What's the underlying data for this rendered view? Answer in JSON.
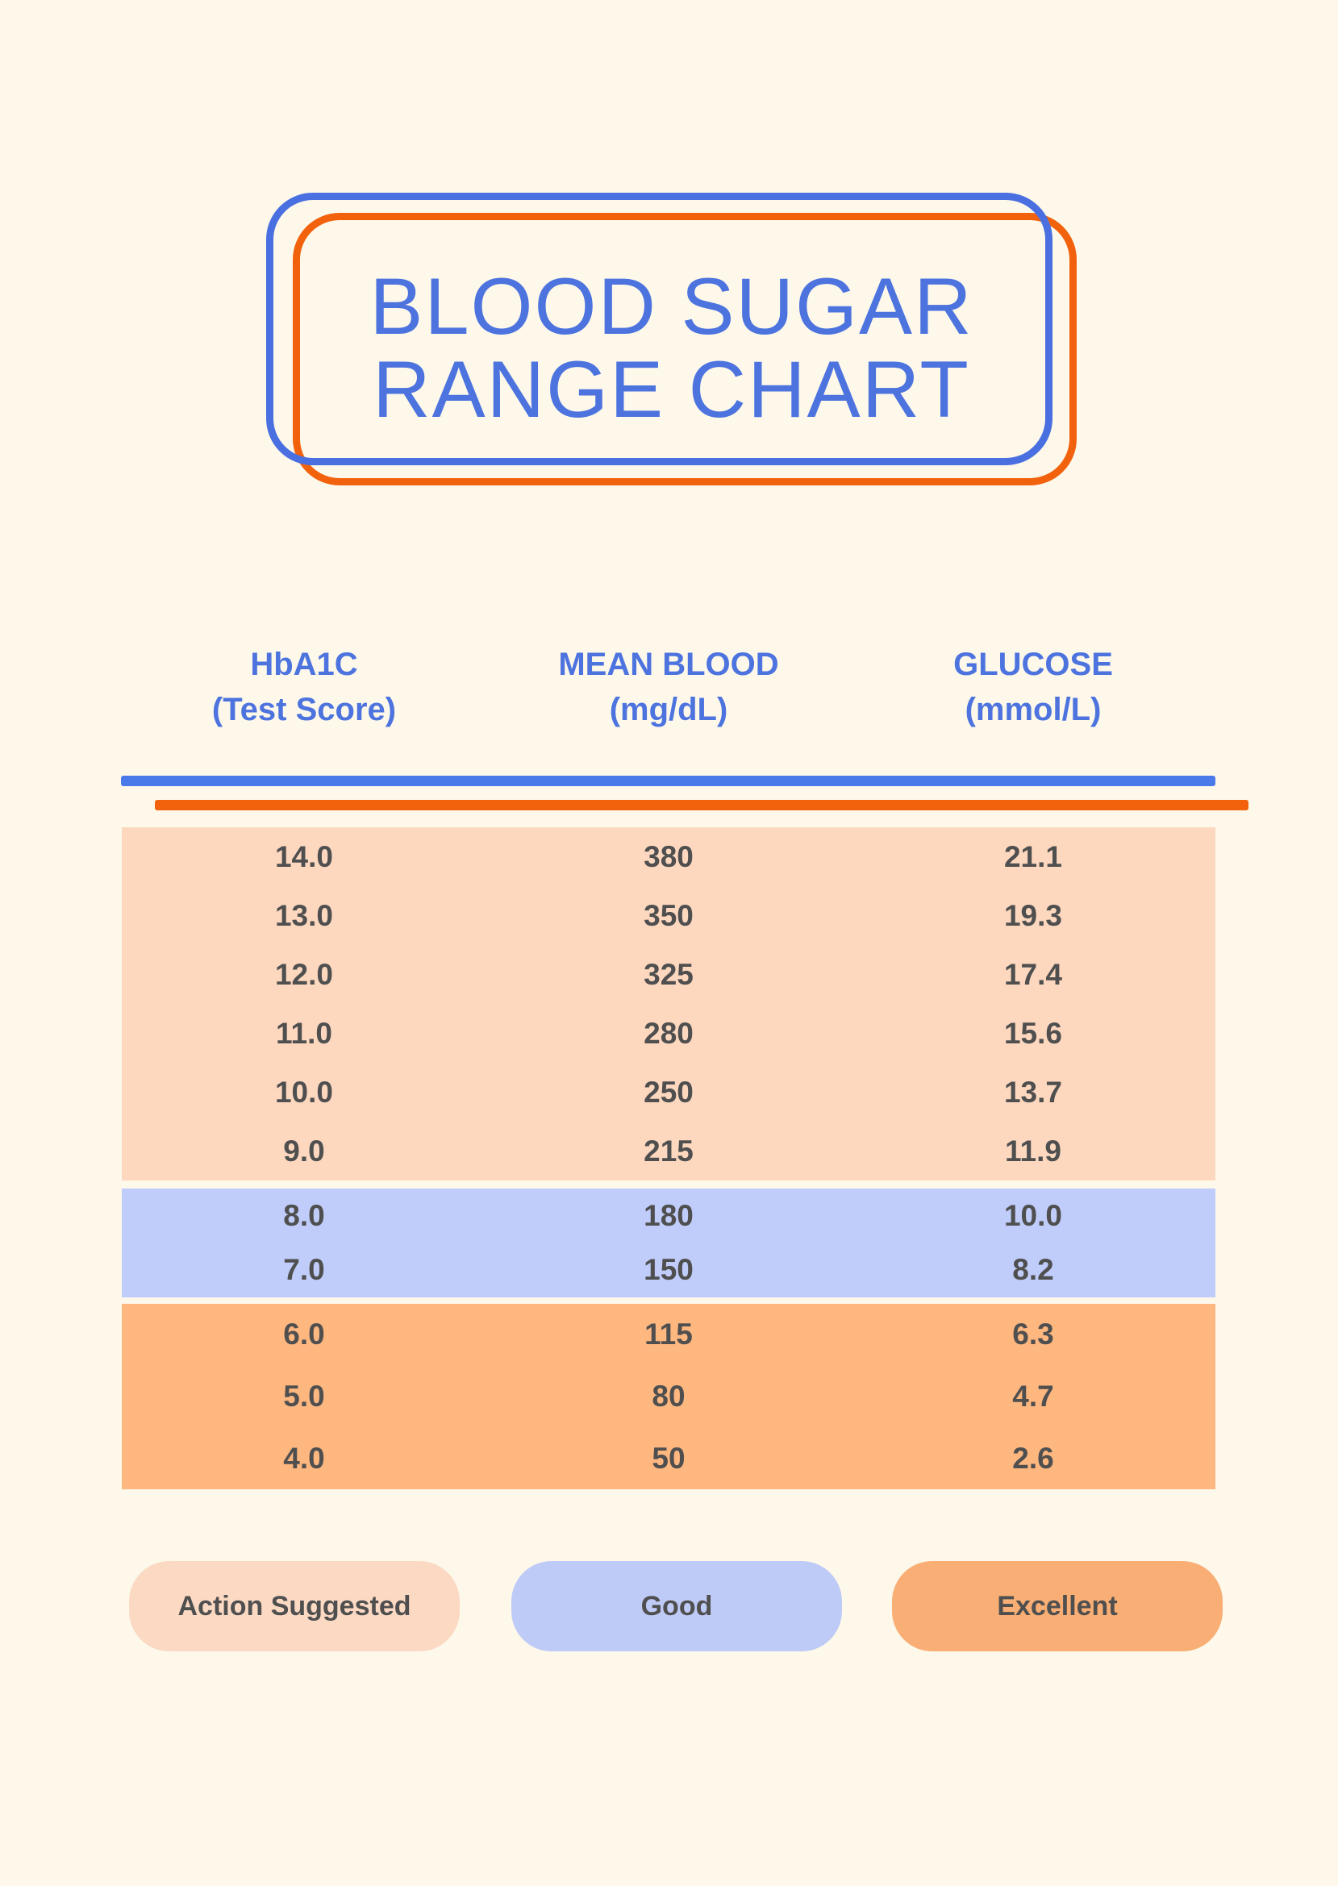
{
  "title": {
    "line1": "BLOOD SUGAR",
    "line2": "RANGE CHART"
  },
  "columns": [
    {
      "line1": "HbA1C",
      "line2": "(Test Score)"
    },
    {
      "line1": "MEAN BLOOD",
      "line2": "(mg/dL)"
    },
    {
      "line1": "GLUCOSE",
      "line2": "(mmol/L)"
    }
  ],
  "sections": [
    {
      "name": "Action Suggested",
      "bg": "#FDD8BF",
      "rows": [
        [
          "14.0",
          "380",
          "21.1"
        ],
        [
          "13.0",
          "350",
          "19.3"
        ],
        [
          "12.0",
          "325",
          "17.4"
        ],
        [
          "11.0",
          "280",
          "15.6"
        ],
        [
          "10.0",
          "250",
          "13.7"
        ],
        [
          "9.0",
          "215",
          "11.9"
        ]
      ]
    },
    {
      "name": "Good",
      "bg": "#C0CDFB",
      "rows": [
        [
          "8.0",
          "180",
          "10.0"
        ],
        [
          "7.0",
          "150",
          "8.2"
        ]
      ]
    },
    {
      "name": "Excellent",
      "bg": "#FFB780",
      "rows": [
        [
          "6.0",
          "115",
          "6.3"
        ],
        [
          "5.0",
          "80",
          "4.7"
        ],
        [
          "4.0",
          "50",
          "2.6"
        ]
      ]
    }
  ],
  "legend": [
    {
      "label": "Action Suggested",
      "bg": "#FBD9C3"
    },
    {
      "label": "Good",
      "bg": "#BFCBF7"
    },
    {
      "label": "Excellent",
      "bg": "#F8AE74"
    }
  ],
  "colors": {
    "background": "#FDF8EA",
    "title_blue": "#4D73DF",
    "border_blue": "#4A6FE0",
    "accent_orange": "#F2620D",
    "divider_blue": "#4A79E9",
    "table_text": "#4F4F4F",
    "row_peach": "#FDD8BF",
    "row_periwinkle": "#C0CDFB",
    "row_orange": "#FFB780"
  },
  "chart_data": {
    "type": "table",
    "title": "BLOOD SUGAR RANGE CHART",
    "columns": [
      "HbA1C (Test Score)",
      "MEAN BLOOD (mg/dL)",
      "GLUCOSE (mmol/L)"
    ],
    "rows": [
      {
        "hba1c": 14.0,
        "mean_blood_mg_dl": 380,
        "glucose_mmol_l": 21.1,
        "category": "Action Suggested"
      },
      {
        "hba1c": 13.0,
        "mean_blood_mg_dl": 350,
        "glucose_mmol_l": 19.3,
        "category": "Action Suggested"
      },
      {
        "hba1c": 12.0,
        "mean_blood_mg_dl": 325,
        "glucose_mmol_l": 17.4,
        "category": "Action Suggested"
      },
      {
        "hba1c": 11.0,
        "mean_blood_mg_dl": 280,
        "glucose_mmol_l": 15.6,
        "category": "Action Suggested"
      },
      {
        "hba1c": 10.0,
        "mean_blood_mg_dl": 250,
        "glucose_mmol_l": 13.7,
        "category": "Action Suggested"
      },
      {
        "hba1c": 9.0,
        "mean_blood_mg_dl": 215,
        "glucose_mmol_l": 11.9,
        "category": "Action Suggested"
      },
      {
        "hba1c": 8.0,
        "mean_blood_mg_dl": 180,
        "glucose_mmol_l": 10.0,
        "category": "Good"
      },
      {
        "hba1c": 7.0,
        "mean_blood_mg_dl": 150,
        "glucose_mmol_l": 8.2,
        "category": "Good"
      },
      {
        "hba1c": 6.0,
        "mean_blood_mg_dl": 115,
        "glucose_mmol_l": 6.3,
        "category": "Excellent"
      },
      {
        "hba1c": 5.0,
        "mean_blood_mg_dl": 80,
        "glucose_mmol_l": 4.7,
        "category": "Excellent"
      },
      {
        "hba1c": 4.0,
        "mean_blood_mg_dl": 50,
        "glucose_mmol_l": 2.6,
        "category": "Excellent"
      }
    ],
    "legend": [
      "Action Suggested",
      "Good",
      "Excellent"
    ]
  }
}
